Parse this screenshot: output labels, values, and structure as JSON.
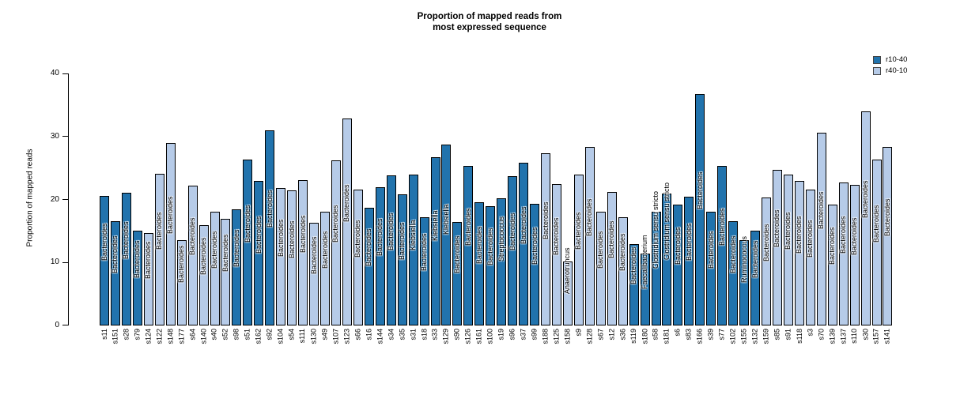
{
  "title": {
    "line1": "Proportion of mapped reads from",
    "line2": "most expressed sequence"
  },
  "y_axis": {
    "label": "Proportion of mapped reads"
  },
  "legend": {
    "entries": [
      {
        "label": "r10-40",
        "color": "#2173AD"
      },
      {
        "label": "r40-10",
        "color": "#B6CBE8"
      }
    ]
  },
  "chart_data": {
    "type": "bar",
    "title": "Proportion of mapped reads from most expressed sequence",
    "xlabel": "",
    "ylabel": "Proportion of mapped reads",
    "ylim": [
      0,
      40
    ],
    "yticks": [
      0,
      10,
      20,
      30,
      40
    ],
    "grid": false,
    "legend_position": "top-right",
    "groups": [
      {
        "name": "r10-40",
        "color": "#2173AD"
      },
      {
        "name": "r40-10",
        "color": "#B6CBE8"
      }
    ],
    "bars": [
      {
        "sample": "s11",
        "value": 20.6,
        "group": "r10-40",
        "label": "Bacteroides"
      },
      {
        "sample": "s151",
        "value": 16.6,
        "group": "r10-40",
        "label": "Bacteroides"
      },
      {
        "sample": "s28",
        "value": 21.1,
        "group": "r10-40",
        "label": "Bacteroides"
      },
      {
        "sample": "s79",
        "value": 15.0,
        "group": "r10-40",
        "label": "Bacteroides"
      },
      {
        "sample": "s124",
        "value": 14.7,
        "group": "r40-10",
        "label": "Bacteroides"
      },
      {
        "sample": "s122",
        "value": 24.1,
        "group": "r40-10",
        "label": "Bacteroides"
      },
      {
        "sample": "s148",
        "value": 29.0,
        "group": "r40-10",
        "label": "Bacteroides"
      },
      {
        "sample": "s177",
        "value": 13.5,
        "group": "r40-10",
        "label": "Bacteroides"
      },
      {
        "sample": "s64",
        "value": 22.2,
        "group": "r40-10",
        "label": "Bacteroides"
      },
      {
        "sample": "s140",
        "value": 15.9,
        "group": "r40-10",
        "label": "Bacteroides"
      },
      {
        "sample": "s40",
        "value": 18.1,
        "group": "r40-10",
        "label": "Bacteroides"
      },
      {
        "sample": "s52",
        "value": 16.9,
        "group": "r40-10",
        "label": "Bacteroides"
      },
      {
        "sample": "s98",
        "value": 18.4,
        "group": "r10-40",
        "label": "Bacteroides"
      },
      {
        "sample": "s51",
        "value": 26.4,
        "group": "r10-40",
        "label": "Bacteroides"
      },
      {
        "sample": "s162",
        "value": 22.9,
        "group": "r10-40",
        "label": "Bacteroides"
      },
      {
        "sample": "s92",
        "value": 31.0,
        "group": "r10-40",
        "label": "Bacteroides"
      },
      {
        "sample": "s104",
        "value": 21.8,
        "group": "r40-10",
        "label": "Bacteroides"
      },
      {
        "sample": "s54",
        "value": 21.4,
        "group": "r40-10",
        "label": "Bacteroides"
      },
      {
        "sample": "s111",
        "value": 23.1,
        "group": "r40-10",
        "label": "Bacteroides"
      },
      {
        "sample": "s130",
        "value": 16.3,
        "group": "r40-10",
        "label": "Bacteroides"
      },
      {
        "sample": "s49",
        "value": 18.0,
        "group": "r40-10",
        "label": "Bacteroides"
      },
      {
        "sample": "s107",
        "value": 26.2,
        "group": "r40-10",
        "label": "Bacteroides"
      },
      {
        "sample": "s123",
        "value": 32.9,
        "group": "r40-10",
        "label": "Bacteroides"
      },
      {
        "sample": "s66",
        "value": 21.6,
        "group": "r40-10",
        "label": "Bacteroides"
      },
      {
        "sample": "s16",
        "value": 18.7,
        "group": "r10-40",
        "label": "Bacteroides"
      },
      {
        "sample": "s144",
        "value": 22.0,
        "group": "r10-40",
        "label": "Bacteroides"
      },
      {
        "sample": "s34",
        "value": 23.8,
        "group": "r10-40",
        "label": "Bacteroides"
      },
      {
        "sample": "s35",
        "value": 20.8,
        "group": "r10-40",
        "label": "Bacteroides"
      },
      {
        "sample": "s31",
        "value": 23.9,
        "group": "r10-40",
        "label": "Klebsiella"
      },
      {
        "sample": "s18",
        "value": 17.2,
        "group": "r10-40",
        "label": "Bacteroides"
      },
      {
        "sample": "s33",
        "value": 26.7,
        "group": "r10-40",
        "label": "Klebsiella"
      },
      {
        "sample": "s129",
        "value": 28.7,
        "group": "r10-40",
        "label": "Klebsiella"
      },
      {
        "sample": "s90",
        "value": 16.4,
        "group": "r10-40",
        "label": "Bacteroides"
      },
      {
        "sample": "s126",
        "value": 25.4,
        "group": "r10-40",
        "label": "Bacteroides"
      },
      {
        "sample": "s161",
        "value": 19.5,
        "group": "r10-40",
        "label": "Bacteroides"
      },
      {
        "sample": "s100",
        "value": 18.9,
        "group": "r10-40",
        "label": "Bacteroides"
      },
      {
        "sample": "s19",
        "value": 20.2,
        "group": "r10-40",
        "label": "Streptococcus"
      },
      {
        "sample": "s96",
        "value": 23.7,
        "group": "r10-40",
        "label": "Bacteroides"
      },
      {
        "sample": "s37",
        "value": 25.9,
        "group": "r10-40",
        "label": "Bacteroides"
      },
      {
        "sample": "s99",
        "value": 19.3,
        "group": "r10-40",
        "label": "Bacteroides"
      },
      {
        "sample": "s188",
        "value": 27.4,
        "group": "r40-10",
        "label": "Bacteroides"
      },
      {
        "sample": "s125",
        "value": 22.4,
        "group": "r40-10",
        "label": "Bacteroides"
      },
      {
        "sample": "s158",
        "value": 10.1,
        "group": "r40-10",
        "label": "Anaerotruncus"
      },
      {
        "sample": "s9",
        "value": 24.0,
        "group": "r40-10",
        "label": "Bacteroides"
      },
      {
        "sample": "s128",
        "value": 28.4,
        "group": "r40-10",
        "label": "Bacteroides"
      },
      {
        "sample": "s67",
        "value": 18.1,
        "group": "r40-10",
        "label": "Bacteroides"
      },
      {
        "sample": "s12",
        "value": 21.2,
        "group": "r40-10",
        "label": "Bacteroides"
      },
      {
        "sample": "s36",
        "value": 17.2,
        "group": "r40-10",
        "label": "Bacteroides"
      },
      {
        "sample": "s119",
        "value": 12.9,
        "group": "r10-40",
        "label": "Bacteroides"
      },
      {
        "sample": "s180",
        "value": 11.4,
        "group": "r10-40",
        "label": "Faecalibacterium"
      },
      {
        "sample": "s58",
        "value": 18.1,
        "group": "r10-40",
        "label": "Clostridium sensu stricto"
      },
      {
        "sample": "s181",
        "value": 20.9,
        "group": "r10-40",
        "label": "Clostridium sensu stricto"
      },
      {
        "sample": "s6",
        "value": 19.2,
        "group": "r10-40",
        "label": "Bacteroides"
      },
      {
        "sample": "s83",
        "value": 20.5,
        "group": "r10-40",
        "label": "Bacteroides"
      },
      {
        "sample": "s166",
        "value": 36.8,
        "group": "r10-40",
        "label": "Bacteroides"
      },
      {
        "sample": "s39",
        "value": 18.1,
        "group": "r10-40",
        "label": "Bacteroides"
      },
      {
        "sample": "s77",
        "value": 25.4,
        "group": "r10-40",
        "label": "Bacteroides"
      },
      {
        "sample": "s102",
        "value": 16.5,
        "group": "r10-40",
        "label": "Bacteroides"
      },
      {
        "sample": "s155",
        "value": 13.5,
        "group": "r10-40",
        "label": "Ruminococcus"
      },
      {
        "sample": "s132",
        "value": 15.0,
        "group": "r10-40",
        "label": "Bacteroides"
      },
      {
        "sample": "s159",
        "value": 20.3,
        "group": "r40-10",
        "label": "Bacteroides"
      },
      {
        "sample": "s85",
        "value": 24.7,
        "group": "r40-10",
        "label": "Bacteroides"
      },
      {
        "sample": "s91",
        "value": 24.0,
        "group": "r40-10",
        "label": "Bacteroides"
      },
      {
        "sample": "s118",
        "value": 22.9,
        "group": "r40-10",
        "label": "Bacteroides"
      },
      {
        "sample": "s3",
        "value": 21.6,
        "group": "r40-10",
        "label": "Bacteroides"
      },
      {
        "sample": "s70",
        "value": 30.6,
        "group": "r40-10",
        "label": "Bacteroides"
      },
      {
        "sample": "s139",
        "value": 19.2,
        "group": "r40-10",
        "label": "Bacteroides"
      },
      {
        "sample": "s137",
        "value": 22.7,
        "group": "r40-10",
        "label": "Bacteroides"
      },
      {
        "sample": "s110",
        "value": 22.3,
        "group": "r40-10",
        "label": "Bacteroides"
      },
      {
        "sample": "s30",
        "value": 34.0,
        "group": "r40-10",
        "label": "Bacteroides"
      },
      {
        "sample": "s157",
        "value": 26.4,
        "group": "r40-10",
        "label": "Bacteroides"
      },
      {
        "sample": "s141",
        "value": 28.3,
        "group": "r40-10",
        "label": "Bacteroides"
      }
    ]
  }
}
